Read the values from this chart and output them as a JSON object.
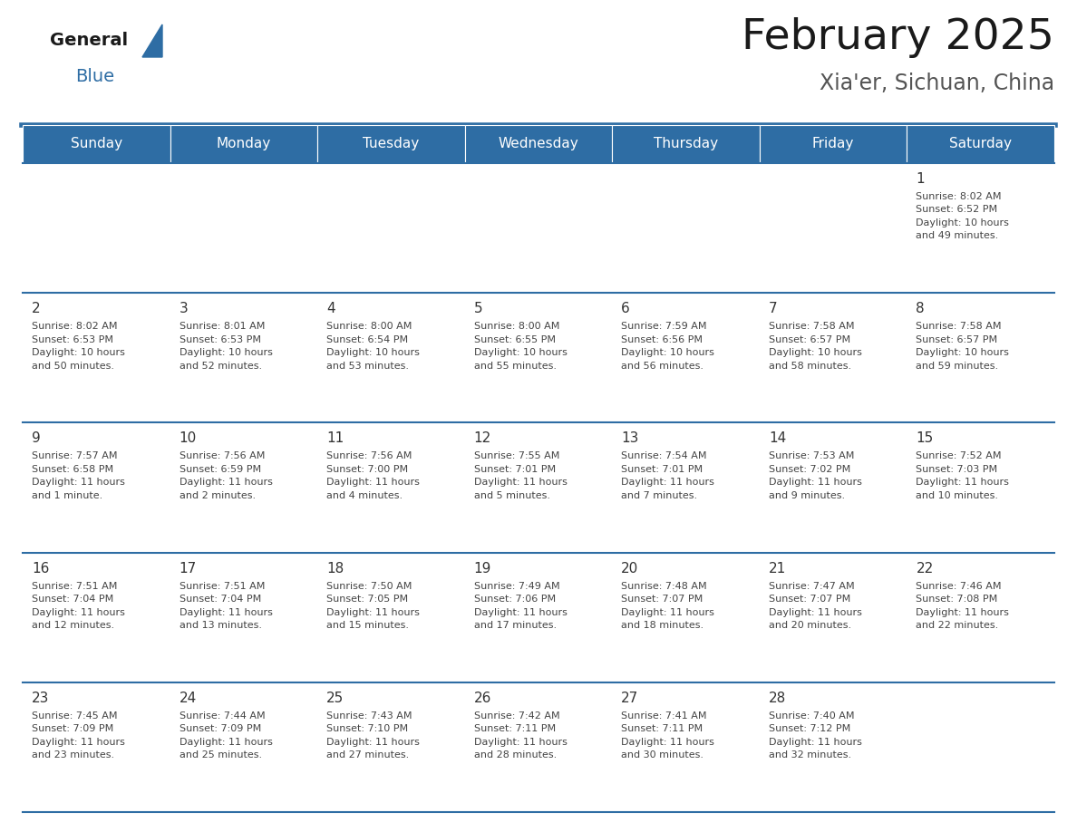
{
  "title": "February 2025",
  "subtitle": "Xia'er, Sichuan, China",
  "header_bg": "#2E6DA4",
  "header_text": "#FFFFFF",
  "cell_bg": "#FFFFFF",
  "border_color": "#2E6DA4",
  "text_color": "#333333",
  "days_of_week": [
    "Sunday",
    "Monday",
    "Tuesday",
    "Wednesday",
    "Thursday",
    "Friday",
    "Saturday"
  ],
  "calendar_data": [
    [
      {
        "day": "",
        "sunrise": "",
        "sunset": "",
        "daylight": ""
      },
      {
        "day": "",
        "sunrise": "",
        "sunset": "",
        "daylight": ""
      },
      {
        "day": "",
        "sunrise": "",
        "sunset": "",
        "daylight": ""
      },
      {
        "day": "",
        "sunrise": "",
        "sunset": "",
        "daylight": ""
      },
      {
        "day": "",
        "sunrise": "",
        "sunset": "",
        "daylight": ""
      },
      {
        "day": "",
        "sunrise": "",
        "sunset": "",
        "daylight": ""
      },
      {
        "day": "1",
        "sunrise": "8:02 AM",
        "sunset": "6:52 PM",
        "daylight": "10 hours\nand 49 minutes."
      }
    ],
    [
      {
        "day": "2",
        "sunrise": "8:02 AM",
        "sunset": "6:53 PM",
        "daylight": "10 hours\nand 50 minutes."
      },
      {
        "day": "3",
        "sunrise": "8:01 AM",
        "sunset": "6:53 PM",
        "daylight": "10 hours\nand 52 minutes."
      },
      {
        "day": "4",
        "sunrise": "8:00 AM",
        "sunset": "6:54 PM",
        "daylight": "10 hours\nand 53 minutes."
      },
      {
        "day": "5",
        "sunrise": "8:00 AM",
        "sunset": "6:55 PM",
        "daylight": "10 hours\nand 55 minutes."
      },
      {
        "day": "6",
        "sunrise": "7:59 AM",
        "sunset": "6:56 PM",
        "daylight": "10 hours\nand 56 minutes."
      },
      {
        "day": "7",
        "sunrise": "7:58 AM",
        "sunset": "6:57 PM",
        "daylight": "10 hours\nand 58 minutes."
      },
      {
        "day": "8",
        "sunrise": "7:58 AM",
        "sunset": "6:57 PM",
        "daylight": "10 hours\nand 59 minutes."
      }
    ],
    [
      {
        "day": "9",
        "sunrise": "7:57 AM",
        "sunset": "6:58 PM",
        "daylight": "11 hours\nand 1 minute."
      },
      {
        "day": "10",
        "sunrise": "7:56 AM",
        "sunset": "6:59 PM",
        "daylight": "11 hours\nand 2 minutes."
      },
      {
        "day": "11",
        "sunrise": "7:56 AM",
        "sunset": "7:00 PM",
        "daylight": "11 hours\nand 4 minutes."
      },
      {
        "day": "12",
        "sunrise": "7:55 AM",
        "sunset": "7:01 PM",
        "daylight": "11 hours\nand 5 minutes."
      },
      {
        "day": "13",
        "sunrise": "7:54 AM",
        "sunset": "7:01 PM",
        "daylight": "11 hours\nand 7 minutes."
      },
      {
        "day": "14",
        "sunrise": "7:53 AM",
        "sunset": "7:02 PM",
        "daylight": "11 hours\nand 9 minutes."
      },
      {
        "day": "15",
        "sunrise": "7:52 AM",
        "sunset": "7:03 PM",
        "daylight": "11 hours\nand 10 minutes."
      }
    ],
    [
      {
        "day": "16",
        "sunrise": "7:51 AM",
        "sunset": "7:04 PM",
        "daylight": "11 hours\nand 12 minutes."
      },
      {
        "day": "17",
        "sunrise": "7:51 AM",
        "sunset": "7:04 PM",
        "daylight": "11 hours\nand 13 minutes."
      },
      {
        "day": "18",
        "sunrise": "7:50 AM",
        "sunset": "7:05 PM",
        "daylight": "11 hours\nand 15 minutes."
      },
      {
        "day": "19",
        "sunrise": "7:49 AM",
        "sunset": "7:06 PM",
        "daylight": "11 hours\nand 17 minutes."
      },
      {
        "day": "20",
        "sunrise": "7:48 AM",
        "sunset": "7:07 PM",
        "daylight": "11 hours\nand 18 minutes."
      },
      {
        "day": "21",
        "sunrise": "7:47 AM",
        "sunset": "7:07 PM",
        "daylight": "11 hours\nand 20 minutes."
      },
      {
        "day": "22",
        "sunrise": "7:46 AM",
        "sunset": "7:08 PM",
        "daylight": "11 hours\nand 22 minutes."
      }
    ],
    [
      {
        "day": "23",
        "sunrise": "7:45 AM",
        "sunset": "7:09 PM",
        "daylight": "11 hours\nand 23 minutes."
      },
      {
        "day": "24",
        "sunrise": "7:44 AM",
        "sunset": "7:09 PM",
        "daylight": "11 hours\nand 25 minutes."
      },
      {
        "day": "25",
        "sunrise": "7:43 AM",
        "sunset": "7:10 PM",
        "daylight": "11 hours\nand 27 minutes."
      },
      {
        "day": "26",
        "sunrise": "7:42 AM",
        "sunset": "7:11 PM",
        "daylight": "11 hours\nand 28 minutes."
      },
      {
        "day": "27",
        "sunrise": "7:41 AM",
        "sunset": "7:11 PM",
        "daylight": "11 hours\nand 30 minutes."
      },
      {
        "day": "28",
        "sunrise": "7:40 AM",
        "sunset": "7:12 PM",
        "daylight": "11 hours\nand 32 minutes."
      },
      {
        "day": "",
        "sunrise": "",
        "sunset": "",
        "daylight": ""
      }
    ]
  ]
}
